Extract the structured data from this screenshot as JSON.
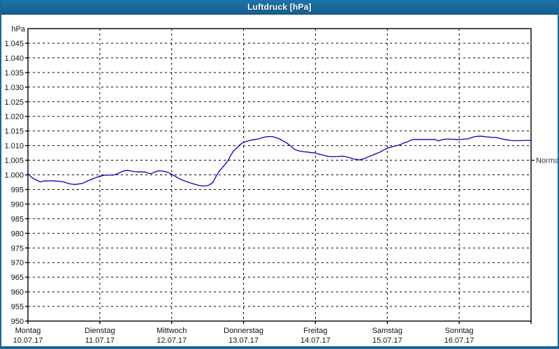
{
  "window": {
    "title": "Luftdruck [hPa]"
  },
  "colors": {
    "titlebar": "#17689c",
    "titlebar_dark": "#0d4d77",
    "window_border": "#17689c",
    "plot_background": "#ffffff",
    "grid": "#000000",
    "axis": "#000000",
    "line": "#0000c0",
    "label_text": "#111111",
    "normal_text": "#333333"
  },
  "chart_data": {
    "type": "line",
    "title": "Luftdruck [hPa]",
    "unit_label": "hPa",
    "ylabel": "hPa",
    "ylim": [
      950,
      1050
    ],
    "grid": true,
    "y_ticks": [
      {
        "value": 1045,
        "label": "1.045"
      },
      {
        "value": 1040,
        "label": "1.040"
      },
      {
        "value": 1035,
        "label": "1.035"
      },
      {
        "value": 1030,
        "label": "1.030"
      },
      {
        "value": 1025,
        "label": "1.025"
      },
      {
        "value": 1020,
        "label": "1.020"
      },
      {
        "value": 1015,
        "label": "1.015"
      },
      {
        "value": 1010,
        "label": "1.010"
      },
      {
        "value": 1005,
        "label": "1.005"
      },
      {
        "value": 1000,
        "label": "1.000"
      },
      {
        "value": 995,
        "label": "995"
      },
      {
        "value": 990,
        "label": "990"
      },
      {
        "value": 985,
        "label": "985"
      },
      {
        "value": 980,
        "label": "980"
      },
      {
        "value": 975,
        "label": "975"
      },
      {
        "value": 970,
        "label": "970"
      },
      {
        "value": 965,
        "label": "965"
      },
      {
        "value": 960,
        "label": "960"
      },
      {
        "value": 955,
        "label": "955"
      },
      {
        "value": 950,
        "label": "950"
      }
    ],
    "x_categories": [
      {
        "weekday": "Montag",
        "date": "10.07.17"
      },
      {
        "weekday": "Dienstag",
        "date": "11.07.17"
      },
      {
        "weekday": "Mittwoch",
        "date": "12.07.17"
      },
      {
        "weekday": "Donnerstag",
        "date": "13.07.17"
      },
      {
        "weekday": "Freitag",
        "date": "14.07.17"
      },
      {
        "weekday": "Samstag",
        "date": "15.07.17"
      },
      {
        "weekday": "Sonntag",
        "date": "16.07.17"
      }
    ],
    "normal_marker": {
      "label": "Normal",
      "value": 1005
    },
    "series": [
      {
        "name": "Luftdruck",
        "color": "#0000c0",
        "points": [
          [
            0.0,
            1000.4
          ],
          [
            0.05,
            999.2
          ],
          [
            0.08,
            998.7
          ],
          [
            0.12,
            998.2
          ],
          [
            0.17,
            997.6
          ],
          [
            0.22,
            997.9
          ],
          [
            0.27,
            997.9
          ],
          [
            0.32,
            998.0
          ],
          [
            0.37,
            997.9
          ],
          [
            0.42,
            997.8
          ],
          [
            0.47,
            997.7
          ],
          [
            0.52,
            997.4
          ],
          [
            0.56,
            997.1
          ],
          [
            0.61,
            996.8
          ],
          [
            0.66,
            996.7
          ],
          [
            0.71,
            996.9
          ],
          [
            0.76,
            997.1
          ],
          [
            0.81,
            997.7
          ],
          [
            0.86,
            998.2
          ],
          [
            0.91,
            998.7
          ],
          [
            0.95,
            999.1
          ],
          [
            1.0,
            999.5
          ],
          [
            1.05,
            999.8
          ],
          [
            1.09,
            999.9
          ],
          [
            1.14,
            999.9
          ],
          [
            1.19,
            999.9
          ],
          [
            1.24,
            1000.3
          ],
          [
            1.28,
            1000.8
          ],
          [
            1.34,
            1001.4
          ],
          [
            1.39,
            1001.5
          ],
          [
            1.44,
            1001.3
          ],
          [
            1.49,
            1001.1
          ],
          [
            1.54,
            1001.0
          ],
          [
            1.58,
            1001.0
          ],
          [
            1.63,
            1001.0
          ],
          [
            1.66,
            1000.7
          ],
          [
            1.71,
            1000.4
          ],
          [
            1.76,
            1000.9
          ],
          [
            1.82,
            1001.4
          ],
          [
            1.87,
            1001.3
          ],
          [
            1.9,
            1001.2
          ],
          [
            1.95,
            1000.8
          ],
          [
            2.0,
            1000.2
          ],
          [
            2.05,
            999.5
          ],
          [
            2.09,
            998.9
          ],
          [
            2.14,
            998.3
          ],
          [
            2.19,
            997.8
          ],
          [
            2.24,
            997.4
          ],
          [
            2.28,
            997.1
          ],
          [
            2.33,
            996.7
          ],
          [
            2.38,
            996.4
          ],
          [
            2.43,
            996.2
          ],
          [
            2.46,
            996.2
          ],
          [
            2.51,
            996.4
          ],
          [
            2.55,
            997.0
          ],
          [
            2.58,
            997.7
          ],
          [
            2.62,
            999.6
          ],
          [
            2.66,
            1001.2
          ],
          [
            2.69,
            1002.0
          ],
          [
            2.75,
            1003.8
          ],
          [
            2.79,
            1005.2
          ],
          [
            2.82,
            1006.6
          ],
          [
            2.86,
            1008.2
          ],
          [
            2.89,
            1008.8
          ],
          [
            2.95,
            1010.3
          ],
          [
            3.0,
            1011.1
          ],
          [
            3.06,
            1011.6
          ],
          [
            3.11,
            1011.9
          ],
          [
            3.16,
            1012.1
          ],
          [
            3.21,
            1012.3
          ],
          [
            3.26,
            1012.7
          ],
          [
            3.31,
            1013.0
          ],
          [
            3.35,
            1013.1
          ],
          [
            3.4,
            1013.1
          ],
          [
            3.45,
            1012.7
          ],
          [
            3.5,
            1012.3
          ],
          [
            3.55,
            1011.6
          ],
          [
            3.6,
            1010.9
          ],
          [
            3.65,
            1010.0
          ],
          [
            3.69,
            1009.1
          ],
          [
            3.74,
            1008.4
          ],
          [
            3.79,
            1008.1
          ],
          [
            3.84,
            1007.9
          ],
          [
            3.89,
            1007.8
          ],
          [
            3.94,
            1007.6
          ],
          [
            4.0,
            1007.5
          ],
          [
            4.04,
            1007.1
          ],
          [
            4.08,
            1006.9
          ],
          [
            4.13,
            1006.6
          ],
          [
            4.18,
            1006.3
          ],
          [
            4.23,
            1006.2
          ],
          [
            4.28,
            1006.2
          ],
          [
            4.33,
            1006.3
          ],
          [
            4.38,
            1006.4
          ],
          [
            4.42,
            1006.2
          ],
          [
            4.47,
            1005.9
          ],
          [
            4.52,
            1005.5
          ],
          [
            4.57,
            1005.3
          ],
          [
            4.61,
            1005.1
          ],
          [
            4.66,
            1005.4
          ],
          [
            4.71,
            1005.9
          ],
          [
            4.76,
            1006.4
          ],
          [
            4.81,
            1006.9
          ],
          [
            4.86,
            1007.4
          ],
          [
            4.9,
            1007.8
          ],
          [
            4.95,
            1008.5
          ],
          [
            5.0,
            1009.1
          ],
          [
            5.04,
            1009.4
          ],
          [
            5.08,
            1009.7
          ],
          [
            5.13,
            1010.0
          ],
          [
            5.18,
            1010.3
          ],
          [
            5.23,
            1010.9
          ],
          [
            5.28,
            1011.3
          ],
          [
            5.32,
            1011.8
          ],
          [
            5.37,
            1012.1
          ],
          [
            5.42,
            1012.1
          ],
          [
            5.47,
            1012.1
          ],
          [
            5.52,
            1012.1
          ],
          [
            5.57,
            1012.1
          ],
          [
            5.62,
            1012.1
          ],
          [
            5.67,
            1012.1
          ],
          [
            5.71,
            1011.6
          ],
          [
            5.76,
            1012.0
          ],
          [
            5.8,
            1012.2
          ],
          [
            5.85,
            1012.2
          ],
          [
            5.9,
            1012.2
          ],
          [
            5.95,
            1012.1
          ],
          [
            6.0,
            1012.1
          ],
          [
            6.06,
            1012.2
          ],
          [
            6.12,
            1012.3
          ],
          [
            6.17,
            1012.7
          ],
          [
            6.22,
            1013.1
          ],
          [
            6.27,
            1013.2
          ],
          [
            6.32,
            1013.2
          ],
          [
            6.37,
            1013.0
          ],
          [
            6.42,
            1012.9
          ],
          [
            6.46,
            1012.8
          ],
          [
            6.51,
            1012.8
          ],
          [
            6.56,
            1012.5
          ],
          [
            6.61,
            1012.2
          ],
          [
            6.66,
            1012.0
          ],
          [
            6.71,
            1011.8
          ],
          [
            6.76,
            1011.7
          ],
          [
            6.81,
            1011.7
          ],
          [
            6.86,
            1011.7
          ],
          [
            6.91,
            1011.8
          ],
          [
            6.95,
            1011.8
          ],
          [
            7.0,
            1011.8
          ]
        ]
      }
    ]
  }
}
